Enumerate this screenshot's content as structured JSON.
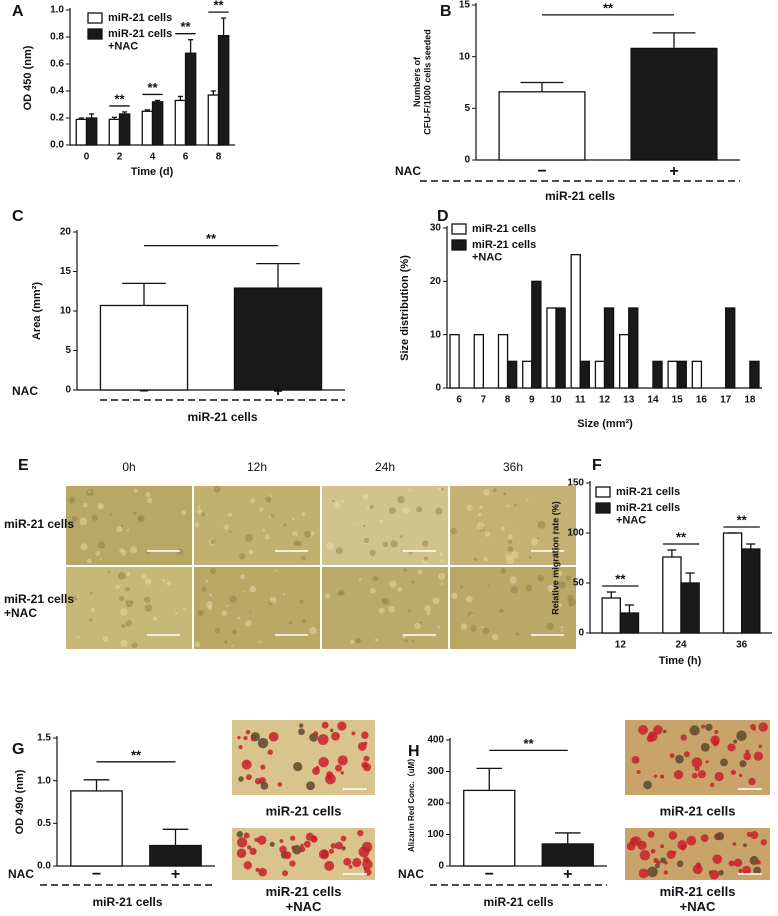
{
  "chart_data": [
    {
      "panel": "A",
      "type": "bar",
      "categories": [
        0,
        2,
        4,
        6,
        8
      ],
      "x_label": "Time (d)",
      "y_label": "OD 450 (nm)",
      "ylim": [
        0,
        1
      ],
      "yticks": [
        {
          "value": 0,
          "label": "0.0"
        },
        0.2,
        0.4,
        0.6,
        0.8,
        {
          "value": 1,
          "label": "1.0"
        }
      ],
      "series": [
        {
          "name": "miR-21 cells",
          "color": "#ffffff",
          "values": [
            0.19,
            0.19,
            0.25,
            0.33,
            0.37
          ],
          "errors": [
            0.01,
            0.015,
            0.01,
            0.03,
            0.03
          ]
        },
        {
          "name": "miR-21 cells\n+NAC",
          "color": "#1a1a1a",
          "values": [
            0.2,
            0.23,
            0.32,
            0.68,
            0.81
          ],
          "errors": [
            0.03,
            0.015,
            0.01,
            0.1,
            0.13
          ]
        }
      ],
      "significance": [
        "**",
        "**",
        "**",
        "**"
      ]
    },
    {
      "panel": "B",
      "type": "bar",
      "categories": [
        "−",
        "+"
      ],
      "row_label": "NAC",
      "group_label": "miR-21 cells",
      "y_label": "Numbers of\nCFU-F/1000 cells seeded",
      "ylim": [
        0,
        15
      ],
      "yticks": [
        0,
        5,
        10,
        15
      ],
      "values": [
        6.6,
        10.8
      ],
      "errors": [
        0.9,
        1.5
      ],
      "colors": [
        "#ffffff",
        "#1a1a1a"
      ],
      "significance": [
        "**"
      ]
    },
    {
      "panel": "C",
      "type": "bar",
      "categories": [
        "−",
        "+"
      ],
      "row_label": "NAC",
      "group_label": "miR-21 cells",
      "y_label": "Area (mm²)",
      "ylim": [
        0,
        20
      ],
      "yticks": [
        0,
        5,
        10,
        15,
        20
      ],
      "values": [
        10.7,
        12.9
      ],
      "errors": [
        2.8,
        3.1
      ],
      "colors": [
        "#ffffff",
        "#1a1a1a"
      ],
      "significance": [
        "**"
      ]
    },
    {
      "panel": "D",
      "type": "bar",
      "categories": [
        6,
        7,
        8,
        9,
        10,
        11,
        12,
        13,
        14,
        15,
        16,
        17,
        18
      ],
      "x_label": "Size (mm²)",
      "y_label": "Size distribution (%)",
      "ylim": [
        0,
        30
      ],
      "yticks": [
        0,
        10,
        20,
        30
      ],
      "series": [
        {
          "name": "miR-21 cells",
          "color": "#ffffff",
          "values": [
            10,
            10,
            10,
            5,
            15,
            25,
            5,
            10,
            0,
            5,
            5,
            0,
            0
          ]
        },
        {
          "name": "miR-21 cells\n+NAC",
          "color": "#1a1a1a",
          "values": [
            0,
            0,
            5,
            20,
            15,
            5,
            15,
            15,
            5,
            5,
            0,
            15,
            5
          ]
        }
      ]
    },
    {
      "panel": "E",
      "type": "image-grid",
      "columns": [
        "0h",
        "12h",
        "24h",
        "36h"
      ],
      "rows": [
        "miR-21 cells",
        "miR-21 cells\n+NAC"
      ]
    },
    {
      "panel": "F",
      "type": "bar",
      "categories": [
        12,
        24,
        36
      ],
      "x_label": "Time (h)",
      "y_label": "Relative migration rate (%)",
      "ylim": [
        0,
        150
      ],
      "yticks": [
        0,
        50,
        100,
        150
      ],
      "series": [
        {
          "name": "miR-21 cells",
          "color": "#ffffff",
          "values": [
            35,
            76,
            100
          ],
          "errors": [
            6,
            7,
            0
          ]
        },
        {
          "name": "miR-21 cells\n+NAC",
          "color": "#1a1a1a",
          "values": [
            20,
            50,
            84
          ],
          "errors": [
            8,
            10,
            5
          ]
        }
      ],
      "significance": [
        "**",
        "**",
        "**"
      ]
    },
    {
      "panel": "G",
      "type": "bar",
      "categories": [
        "−",
        "+"
      ],
      "row_label": "NAC",
      "group_label": "miR-21 cells",
      "y_label": "OD 490 (nm)",
      "ylim": [
        0,
        1.5
      ],
      "yticks": [
        {
          "value": 0,
          "label": "0.0"
        },
        0.5,
        {
          "value": 1,
          "label": "1.0"
        },
        1.5
      ],
      "values": [
        0.88,
        0.24
      ],
      "errors": [
        0.13,
        0.19
      ],
      "colors": [
        "#ffffff",
        "#1a1a1a"
      ],
      "significance": [
        "**"
      ],
      "images": [
        "miR-21 cells",
        "miR-21 cells\n+NAC"
      ]
    },
    {
      "panel": "H",
      "type": "bar",
      "categories": [
        "−",
        "+"
      ],
      "row_label": "NAC",
      "group_label": "miR-21 cells",
      "y_label": "Alizarin Red Conc.（uM）",
      "ylim": [
        0,
        400
      ],
      "yticks": [
        0,
        100,
        200,
        300,
        400
      ],
      "values": [
        240,
        70
      ],
      "errors": [
        70,
        35
      ],
      "colors": [
        "#ffffff",
        "#1a1a1a"
      ],
      "significance": [
        "**"
      ],
      "images": [
        "miR-21 cells",
        "miR-21 cells\n+NAC"
      ]
    }
  ]
}
